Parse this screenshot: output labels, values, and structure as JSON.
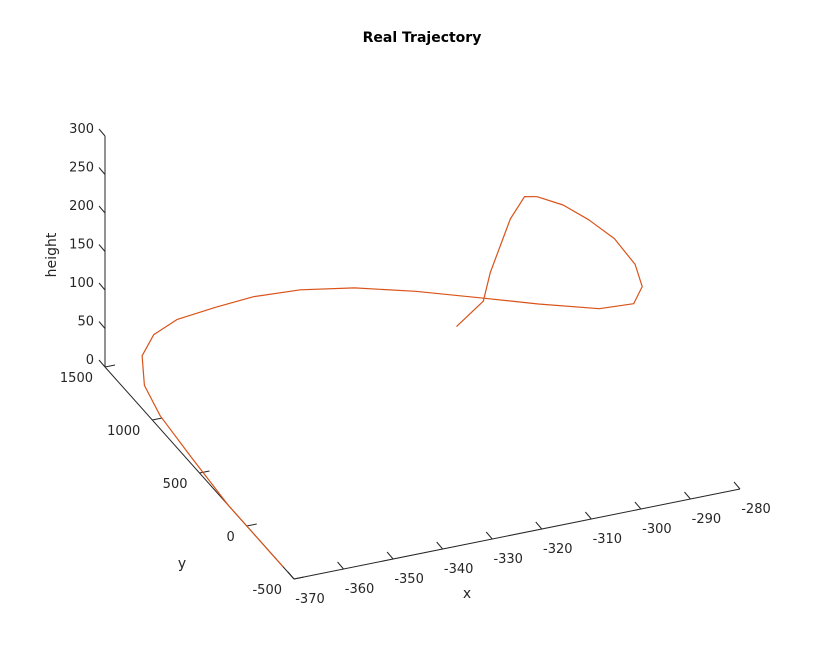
{
  "chart_data": {
    "type": "line",
    "title": "Real Trajectory",
    "xlabel": "x",
    "ylabel": "y",
    "zlabel": "height",
    "xlim": [
      -370,
      -280
    ],
    "ylim": [
      -500,
      1500
    ],
    "zlim": [
      0,
      300
    ],
    "x_ticks": [
      "-370",
      "-360",
      "-350",
      "-340",
      "-330",
      "-320",
      "-310",
      "-300",
      "-290",
      "-280"
    ],
    "y_ticks": [
      "-500",
      "0",
      "500",
      "1000",
      "1500"
    ],
    "z_ticks": [
      "0",
      "50",
      "100",
      "150",
      "200",
      "250",
      "300"
    ],
    "grid": false,
    "line_color": "#d95319",
    "series": [
      {
        "points": [
          {
            "x": -370,
            "y": -383,
            "z": 0
          },
          {
            "x": -370,
            "y": 193,
            "z": 0
          },
          {
            "x": -369,
            "y": 645,
            "z": 0
          },
          {
            "x": -368,
            "y": 1021,
            "z": 0
          },
          {
            "x": -367,
            "y": 1240,
            "z": 8
          },
          {
            "x": -365,
            "y": 1370,
            "z": 26
          },
          {
            "x": -362,
            "y": 1403,
            "z": 45
          },
          {
            "x": -358,
            "y": 1364,
            "z": 65
          },
          {
            "x": -352,
            "y": 1270,
            "z": 86
          },
          {
            "x": -346,
            "y": 1182,
            "z": 104
          },
          {
            "x": -339,
            "y": 1057,
            "z": 121
          },
          {
            "x": -331,
            "y": 905,
            "z": 134
          },
          {
            "x": -322,
            "y": 730,
            "z": 142
          },
          {
            "x": -312,
            "y": 534,
            "z": 147
          },
          {
            "x": -304,
            "y": 375,
            "z": 151
          },
          {
            "x": -295,
            "y": 202,
            "z": 157
          },
          {
            "x": -290,
            "y": 100,
            "z": 171
          },
          {
            "x": -289,
            "y": 63,
            "z": 197
          },
          {
            "x": -290,
            "y": 86,
            "z": 224
          },
          {
            "x": -293,
            "y": 147,
            "z": 253
          },
          {
            "x": -297,
            "y": 211,
            "z": 274
          },
          {
            "x": -301,
            "y": 271,
            "z": 290
          },
          {
            "x": -305,
            "y": 336,
            "z": 297
          },
          {
            "x": -307,
            "y": 363,
            "z": 296
          },
          {
            "x": -309,
            "y": 410,
            "z": 263
          },
          {
            "x": -312,
            "y": 464,
            "z": 190
          },
          {
            "x": -313,
            "y": 486,
            "z": 151
          },
          {
            "x": -317,
            "y": 560,
            "z": 113
          }
        ]
      }
    ]
  }
}
